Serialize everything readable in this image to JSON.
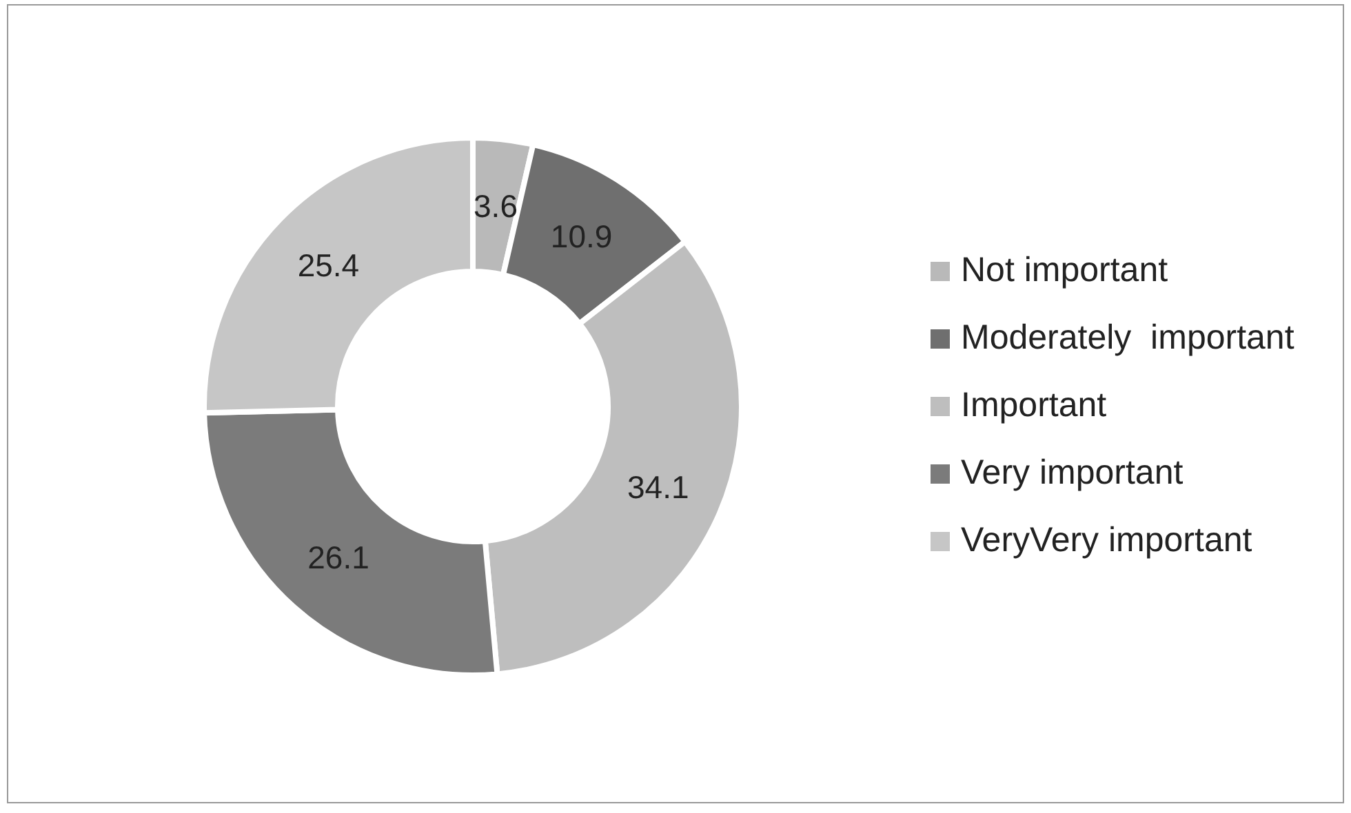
{
  "chart_data": {
    "type": "donut",
    "categories": [
      "Not important",
      "Moderately  important",
      "Important",
      "Very important",
      "VeryVery important"
    ],
    "values": [
      3.6,
      10.9,
      34.1,
      26.1,
      25.4
    ],
    "colors": [
      "#b9b9b9",
      "#6f6f6f",
      "#bebebe",
      "#7b7b7b",
      "#c6c6c6"
    ],
    "data_labels": true,
    "legend": "right"
  }
}
